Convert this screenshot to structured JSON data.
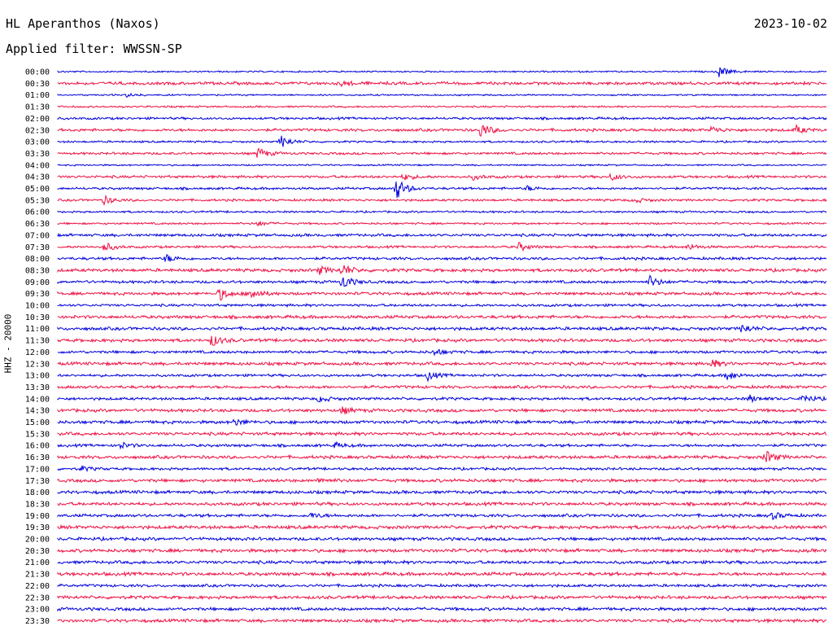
{
  "header": {
    "title": "HL Aperanthos (Naxos)",
    "date": "2023-10-02",
    "filter": "Applied filter: WWSSN-SP"
  },
  "y_axis_label": "HHZ - 20000",
  "colors": {
    "blue": "#0000dd",
    "red": "#ee1144",
    "text": "#000000"
  },
  "chart_data": {
    "type": "line",
    "title": "HL Aperanthos (Naxos)",
    "subtitle": "Applied filter: WWSSN-SP",
    "ylabel": "HHZ - 20000",
    "trace_labels": [
      "00:00",
      "00:30",
      "01:00",
      "01:30",
      "02:00",
      "02:30",
      "03:00",
      "03:30",
      "04:00",
      "04:30",
      "05:00",
      "05:30",
      "06:00",
      "06:30",
      "07:00",
      "07:30",
      "08:00",
      "08:30",
      "09:00",
      "09:30",
      "10:00",
      "10:30",
      "11:00",
      "11:30",
      "12:00",
      "12:30",
      "13:00",
      "13:30",
      "14:00",
      "14:30",
      "15:00",
      "15:30",
      "16:00",
      "16:30",
      "17:00",
      "17:30",
      "18:00",
      "18:30",
      "19:00",
      "19:30",
      "20:00",
      "20:30",
      "21:00",
      "21:30",
      "22:00",
      "22:30",
      "23:00",
      "23:30"
    ],
    "trace_colors": [
      "blue",
      "red"
    ],
    "x_range_fraction": [
      0,
      1
    ],
    "noise_level": [
      0.8,
      1.5,
      0.8,
      0.9,
      1.2,
      1.4,
      1.0,
      1.2,
      0.8,
      1.3,
      1.2,
      1.2,
      1.0,
      1.0,
      1.4,
      1.2,
      1.4,
      1.6,
      1.4,
      1.5,
      1.3,
      1.6,
      1.6,
      1.6,
      1.4,
      1.6,
      1.3,
      1.5,
      1.4,
      1.6,
      1.6,
      1.6,
      1.4,
      1.6,
      1.3,
      1.6,
      1.6,
      1.6,
      1.5,
      1.7,
      1.6,
      1.7,
      1.6,
      1.7,
      1.4,
      1.6,
      1.6,
      1.6
    ],
    "events": [
      {
        "trace": 0,
        "x": 0.86,
        "amp": 7
      },
      {
        "trace": 1,
        "x": 0.37,
        "amp": 3
      },
      {
        "trace": 2,
        "x": 0.09,
        "amp": 2
      },
      {
        "trace": 5,
        "x": 0.55,
        "amp": 9
      },
      {
        "trace": 5,
        "x": 0.85,
        "amp": 4
      },
      {
        "trace": 5,
        "x": 0.96,
        "amp": 5
      },
      {
        "trace": 6,
        "x": 0.29,
        "amp": 8
      },
      {
        "trace": 7,
        "x": 0.26,
        "amp": 7
      },
      {
        "trace": 9,
        "x": 0.45,
        "amp": 4
      },
      {
        "trace": 9,
        "x": 0.54,
        "amp": 3
      },
      {
        "trace": 9,
        "x": 0.72,
        "amp": 4
      },
      {
        "trace": 10,
        "x": 0.44,
        "amp": 14
      },
      {
        "trace": 10,
        "x": 0.61,
        "amp": 3
      },
      {
        "trace": 11,
        "x": 0.06,
        "amp": 5
      },
      {
        "trace": 11,
        "x": 0.75,
        "amp": 3
      },
      {
        "trace": 13,
        "x": 0.26,
        "amp": 3
      },
      {
        "trace": 15,
        "x": 0.06,
        "amp": 6
      },
      {
        "trace": 15,
        "x": 0.6,
        "amp": 5
      },
      {
        "trace": 15,
        "x": 0.82,
        "amp": 4
      },
      {
        "trace": 16,
        "x": 0.14,
        "amp": 5
      },
      {
        "trace": 17,
        "x": 0.34,
        "amp": 5
      },
      {
        "trace": 17,
        "x": 0.37,
        "amp": 7
      },
      {
        "trace": 18,
        "x": 0.37,
        "amp": 9
      },
      {
        "trace": 18,
        "x": 0.77,
        "amp": 7
      },
      {
        "trace": 19,
        "x": 0.21,
        "amp": 8
      },
      {
        "trace": 19,
        "x": 0.25,
        "amp": 8
      },
      {
        "trace": 22,
        "x": 0.89,
        "amp": 5
      },
      {
        "trace": 23,
        "x": 0.2,
        "amp": 7
      },
      {
        "trace": 24,
        "x": 0.49,
        "amp": 4
      },
      {
        "trace": 25,
        "x": 0.85,
        "amp": 5
      },
      {
        "trace": 26,
        "x": 0.48,
        "amp": 6
      },
      {
        "trace": 26,
        "x": 0.87,
        "amp": 6
      },
      {
        "trace": 28,
        "x": 0.34,
        "amp": 4
      },
      {
        "trace": 28,
        "x": 0.9,
        "amp": 4
      },
      {
        "trace": 28,
        "x": 0.97,
        "amp": 5
      },
      {
        "trace": 29,
        "x": 0.37,
        "amp": 4
      },
      {
        "trace": 30,
        "x": 0.23,
        "amp": 4
      },
      {
        "trace": 32,
        "x": 0.08,
        "amp": 4
      },
      {
        "trace": 32,
        "x": 0.36,
        "amp": 3
      },
      {
        "trace": 33,
        "x": 0.92,
        "amp": 8
      },
      {
        "trace": 34,
        "x": 0.03,
        "amp": 3
      },
      {
        "trace": 35,
        "x": 0.34,
        "amp": 3
      },
      {
        "trace": 38,
        "x": 0.33,
        "amp": 3
      },
      {
        "trace": 38,
        "x": 0.93,
        "amp": 4
      }
    ]
  }
}
